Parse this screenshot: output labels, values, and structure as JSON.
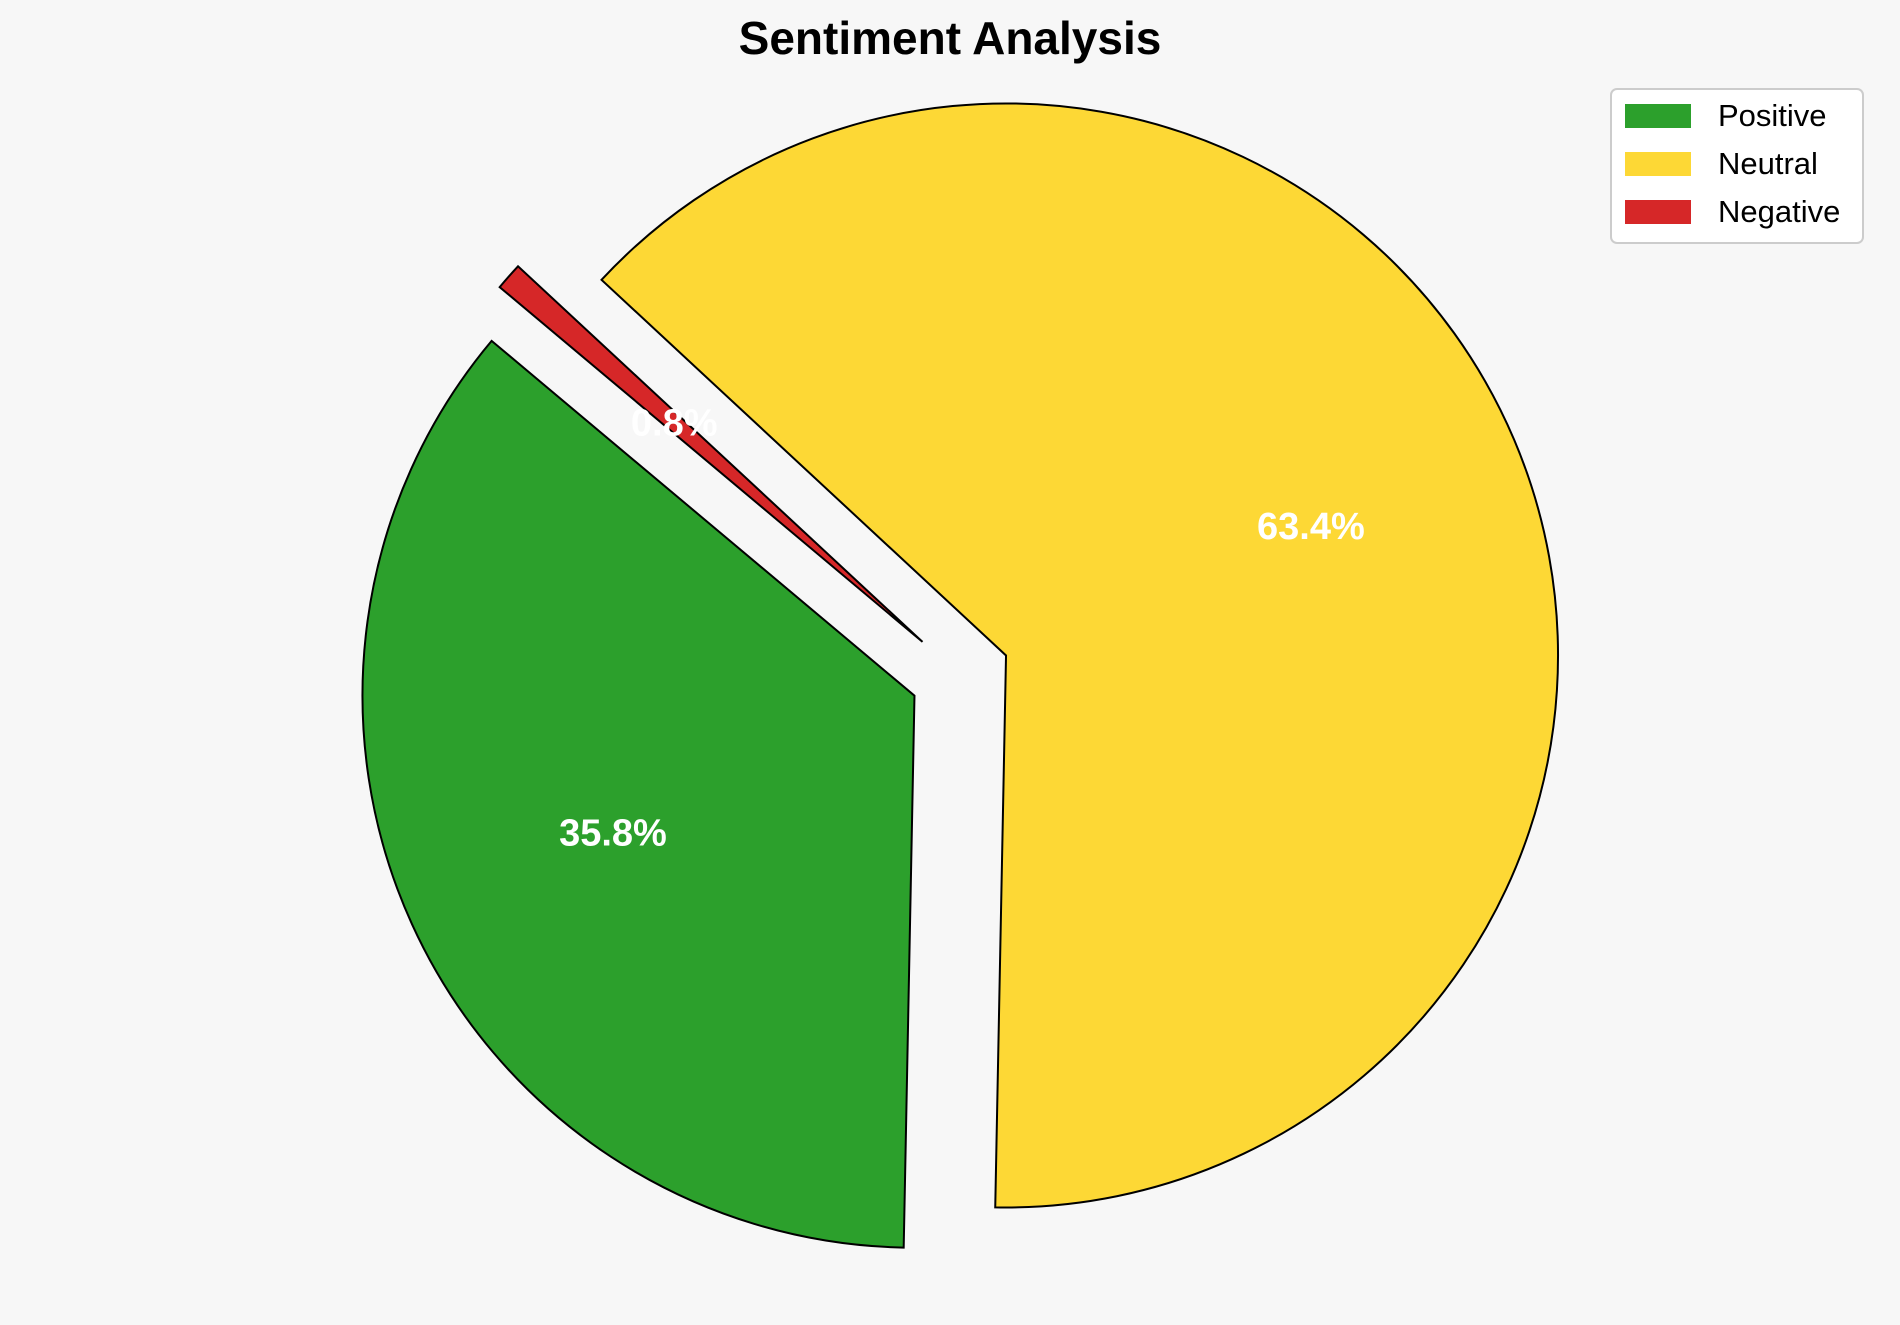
{
  "chart_data": {
    "type": "pie",
    "title": "Sentiment Analysis",
    "categories": [
      "Positive",
      "Neutral",
      "Negative"
    ],
    "values": [
      35.8,
      63.4,
      0.8
    ],
    "value_labels": [
      "35.8%",
      "63.4%",
      "0.8%"
    ],
    "colors": [
      "#2ca02c",
      "#fdd835",
      "#d62728"
    ],
    "exploded": [
      true,
      true,
      true
    ],
    "start_angle_deg": 140,
    "direction": "counterclockwise",
    "legend": {
      "placement": "top-right",
      "entries": [
        "Positive",
        "Neutral",
        "Negative"
      ]
    }
  }
}
